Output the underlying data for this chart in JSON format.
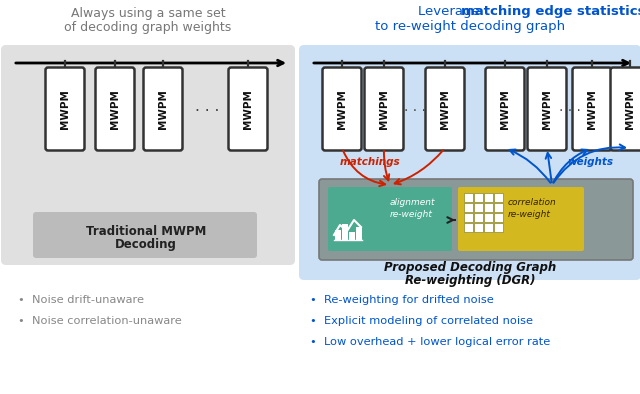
{
  "bg_color": "#ffffff",
  "left_bg": "#e0e0e0",
  "right_bg": "#cce0f5",
  "left_title_lines": [
    "Always using a same set",
    "of decoding graph weights"
  ],
  "right_title_pre": "Leverage ",
  "right_title_bold": "matching edge statistics",
  "right_subtitle": "to re-weight decoding graph",
  "left_label_line1": "Traditional MWPM",
  "left_label_line2": "Decoding",
  "right_label_line1": "Proposed Decoding Graph",
  "right_label_line2": "Re-weighting (DGR)",
  "left_bullets": [
    "Noise drift-unaware",
    "Noise correlation-unaware"
  ],
  "right_bullets": [
    "Re-weighting for drifted noise",
    "Explicit modeling of correlated noise",
    "Low overhead + lower logical error rate"
  ],
  "gray": "#888888",
  "blue": "#0055cc",
  "red": "#cc2200",
  "align_bg": "#4caa90",
  "corr_bg": "#d4b820",
  "reweight_box": "#8a9898",
  "mwpm_edge": "#333333",
  "label_box_left": "#bbbbbb"
}
